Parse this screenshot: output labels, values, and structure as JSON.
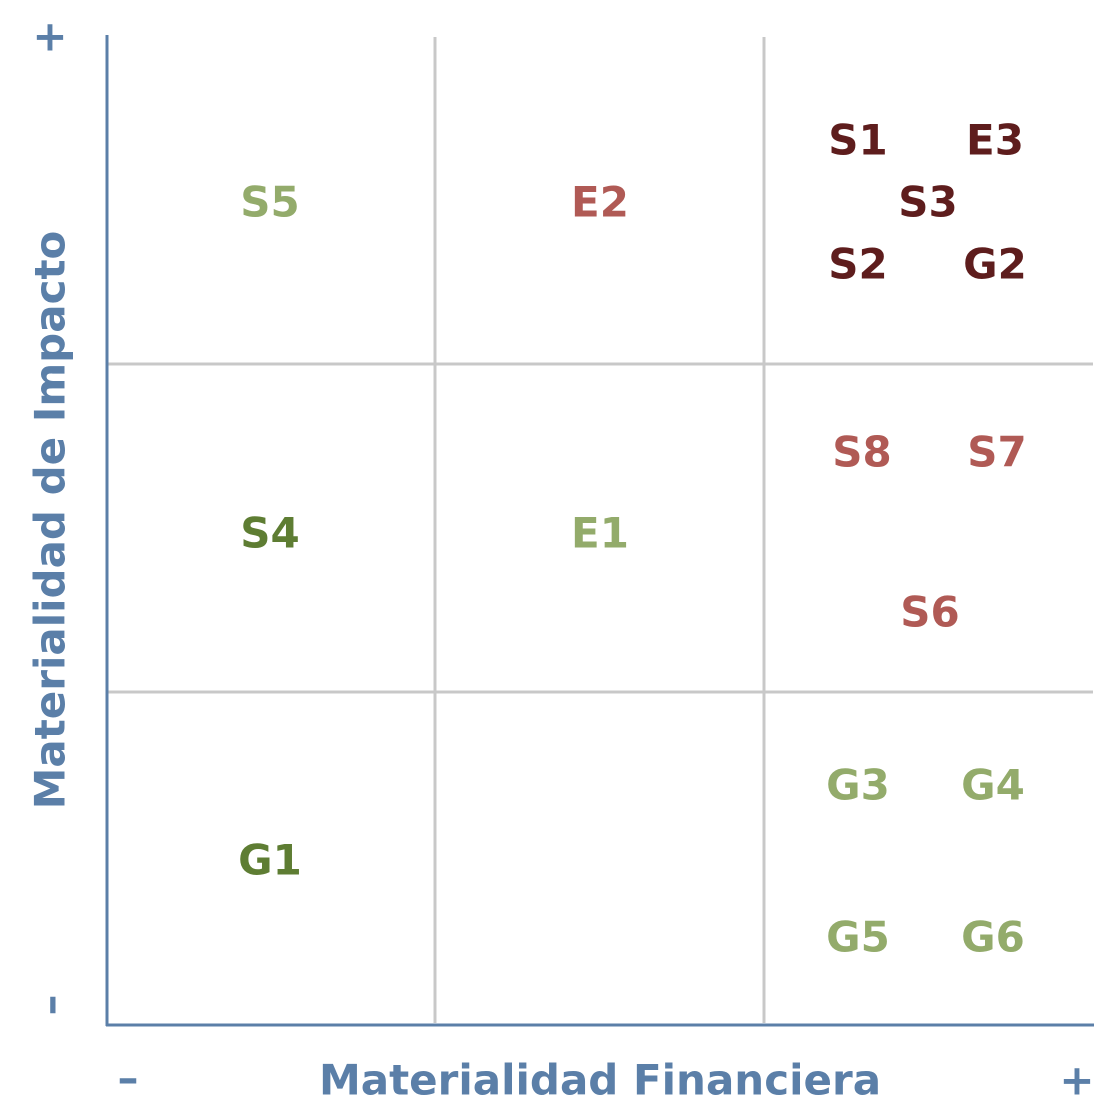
{
  "axes": {
    "y_label": "Materialidad de Impacto",
    "x_label": "Materialidad Financiera",
    "y_plus": "+",
    "y_minus": "–",
    "x_minus": "–",
    "x_plus": "+"
  },
  "items": [
    {
      "label": "S5",
      "color": "#93ab6b"
    },
    {
      "label": "E2",
      "color": "#b05a55"
    },
    {
      "label": "S1",
      "color": "#5e1d1d"
    },
    {
      "label": "E3",
      "color": "#5e1d1d"
    },
    {
      "label": "S3",
      "color": "#5e1d1d"
    },
    {
      "label": "S2",
      "color": "#5e1d1d"
    },
    {
      "label": "G2",
      "color": "#5e1d1d"
    },
    {
      "label": "S8",
      "color": "#b05a55"
    },
    {
      "label": "S7",
      "color": "#b05a55"
    },
    {
      "label": "S4",
      "color": "#5e7d33"
    },
    {
      "label": "E1",
      "color": "#93ab6b"
    },
    {
      "label": "S6",
      "color": "#b05a55"
    },
    {
      "label": "G1",
      "color": "#5e7d33"
    },
    {
      "label": "G3",
      "color": "#93ab6b"
    },
    {
      "label": "G4",
      "color": "#93ab6b"
    },
    {
      "label": "G5",
      "color": "#93ab6b"
    },
    {
      "label": "G6",
      "color": "#93ab6b"
    }
  ]
}
